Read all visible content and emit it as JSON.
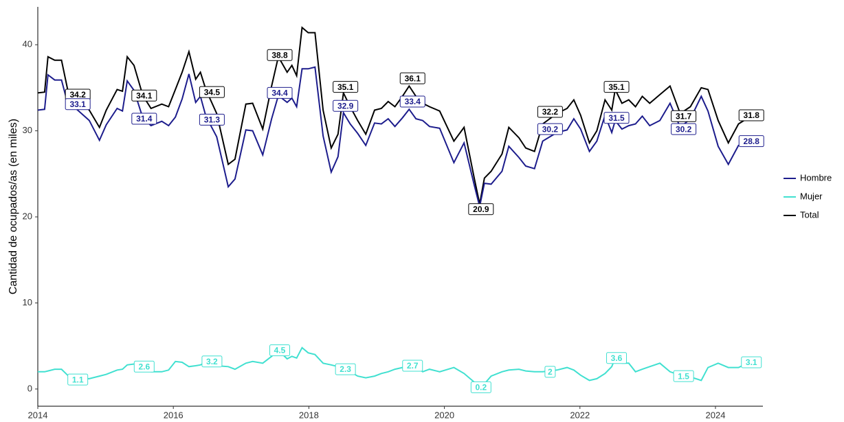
{
  "chart_data": {
    "type": "line",
    "ylabel": "Cantidad de ocupados/as (en miles)",
    "x": [
      2014.0,
      2014.1,
      2014.15,
      2014.25,
      2014.35,
      2014.44,
      2014.56,
      2014.76,
      2014.91,
      2015.01,
      2015.17,
      2015.25,
      2015.32,
      2015.42,
      2015.55,
      2015.67,
      2015.83,
      2015.93,
      2016.03,
      2016.13,
      2016.23,
      2016.33,
      2016.4,
      2016.48,
      2016.64,
      2016.81,
      2016.91,
      2017.07,
      2017.17,
      2017.32,
      2017.45,
      2017.55,
      2017.68,
      2017.75,
      2017.82,
      2017.9,
      2017.99,
      2018.09,
      2018.21,
      2018.33,
      2018.43,
      2018.51,
      2018.61,
      2018.72,
      2018.84,
      2018.97,
      2019.07,
      2019.17,
      2019.27,
      2019.38,
      2019.48,
      2019.58,
      2019.68,
      2019.78,
      2019.93,
      2020.14,
      2020.29,
      2020.44,
      2020.52,
      2020.59,
      2020.69,
      2020.85,
      2020.95,
      2021.1,
      2021.2,
      2021.33,
      2021.45,
      2021.66,
      2021.81,
      2021.91,
      2022.01,
      2022.14,
      2022.25,
      2022.37,
      2022.47,
      2022.52,
      2022.62,
      2022.72,
      2022.82,
      2022.92,
      2023.03,
      2023.18,
      2023.33,
      2023.48,
      2023.63,
      2023.79,
      2023.89,
      2024.04,
      2024.19,
      2024.34,
      2024.5
    ],
    "series": [
      {
        "name": "Hombre",
        "color": "#1c1c8c",
        "values": [
          32.4,
          32.5,
          36.5,
          35.9,
          35.9,
          33.2,
          32.6,
          31.2,
          28.9,
          30.7,
          32.6,
          32.3,
          35.8,
          34.7,
          31.5,
          30.6,
          31.1,
          30.6,
          31.6,
          33.7,
          36.6,
          33.3,
          34.0,
          31.7,
          29.3,
          23.5,
          24.4,
          30.1,
          30.0,
          27.2,
          31.4,
          34.1,
          33.3,
          33.8,
          32.8,
          37.2,
          37.2,
          37.4,
          29.4,
          25.2,
          27.0,
          32.1,
          30.8,
          29.7,
          28.3,
          30.9,
          30.8,
          31.4,
          30.5,
          31.5,
          32.5,
          31.4,
          31.2,
          30.5,
          30.3,
          26.3,
          28.6,
          23.7,
          21.2,
          23.9,
          23.8,
          25.3,
          28.2,
          26.9,
          25.9,
          25.6,
          28.8,
          29.8,
          30.1,
          31.4,
          30.2,
          27.6,
          28.8,
          31.8,
          29.8,
          31.2,
          30.2,
          30.6,
          30.8,
          31.7,
          30.6,
          31.2,
          33.2,
          30.4,
          31.4,
          34.0,
          32.3,
          28.2,
          26.1,
          28.3,
          28.5
        ],
        "labels": {
          "x": [
            2014.59,
            2015.57,
            2016.57,
            2017.57,
            2018.54,
            2019.53,
            2021.56,
            2022.54,
            2023.53,
            2024.53
          ],
          "values": [
            33.1,
            31.4,
            31.3,
            34.4,
            32.9,
            33.4,
            30.2,
            31.5,
            30.2,
            28.8
          ]
        }
      },
      {
        "name": "Mujer",
        "color": "#40e0d0",
        "values": [
          2.0,
          2.0,
          2.1,
          2.3,
          2.3,
          1.6,
          1.2,
          1.2,
          1.5,
          1.7,
          2.2,
          2.3,
          2.8,
          2.9,
          2.6,
          2.0,
          2.0,
          2.2,
          3.2,
          3.1,
          2.6,
          2.7,
          2.8,
          3.1,
          2.7,
          2.6,
          2.3,
          3.0,
          3.2,
          3.0,
          3.8,
          4.5,
          3.5,
          3.8,
          3.6,
          4.8,
          4.2,
          4.0,
          3.0,
          2.8,
          2.6,
          2.3,
          2.0,
          1.5,
          1.3,
          1.5,
          1.8,
          2.0,
          2.3,
          2.5,
          2.7,
          2.6,
          2.0,
          2.3,
          2.0,
          2.5,
          1.8,
          0.8,
          0.3,
          0.6,
          1.5,
          2.0,
          2.2,
          2.3,
          2.1,
          2.0,
          2.0,
          2.2,
          2.5,
          2.2,
          1.6,
          1.0,
          1.2,
          1.8,
          2.6,
          3.6,
          3.0,
          3.0,
          2.0,
          2.3,
          2.6,
          3.0,
          2.0,
          1.6,
          1.4,
          1.0,
          2.5,
          3.0,
          2.5,
          2.5,
          3.1
        ],
        "labels": {
          "x": [
            2014.59,
            2015.57,
            2016.57,
            2017.57,
            2018.54,
            2019.53,
            2020.54,
            2021.56,
            2022.54,
            2023.53,
            2024.53
          ],
          "values": [
            1.1,
            2.6,
            3.2,
            4.5,
            2.3,
            2.7,
            0.2,
            2,
            3.6,
            1.5,
            3.1
          ]
        }
      },
      {
        "name": "Total",
        "color": "#000000",
        "values": [
          34.4,
          34.5,
          38.6,
          38.2,
          38.2,
          34.8,
          33.8,
          32.4,
          30.4,
          32.4,
          34.8,
          34.6,
          38.6,
          37.6,
          34.1,
          32.6,
          33.1,
          32.8,
          34.8,
          36.8,
          39.2,
          36.0,
          36.8,
          34.8,
          32.0,
          26.1,
          26.7,
          33.1,
          33.2,
          30.2,
          35.2,
          38.6,
          36.8,
          37.6,
          36.4,
          42.0,
          41.4,
          41.4,
          32.4,
          28.0,
          29.6,
          34.4,
          32.8,
          31.2,
          29.6,
          32.4,
          32.6,
          33.4,
          32.8,
          34.0,
          35.2,
          34.0,
          33.2,
          32.8,
          32.3,
          28.8,
          30.4,
          24.5,
          21.5,
          24.5,
          25.3,
          27.3,
          30.4,
          29.2,
          28.0,
          27.6,
          30.8,
          32.0,
          32.6,
          33.6,
          31.8,
          28.6,
          30.0,
          33.6,
          32.4,
          34.8,
          33.2,
          33.6,
          32.8,
          34.0,
          33.2,
          34.2,
          35.2,
          32.0,
          32.8,
          35.0,
          34.8,
          31.2,
          28.6,
          30.8,
          31.6
        ],
        "labels": {
          "x": [
            2014.59,
            2015.57,
            2016.57,
            2017.57,
            2018.54,
            2019.53,
            2020.54,
            2021.56,
            2022.54,
            2023.53,
            2024.53
          ],
          "values": [
            34.2,
            34.1,
            34.5,
            38.8,
            35.1,
            36.1,
            20.9,
            32.2,
            35.1,
            31.7,
            31.8
          ]
        }
      }
    ],
    "xlim": [
      2014,
      2024.7
    ],
    "xticks": [
      2014,
      2016,
      2018,
      2020,
      2022,
      2024
    ],
    "ylim": [
      -2,
      44.4
    ],
    "yticks": [
      0,
      10,
      20,
      30,
      40
    ],
    "grid": false,
    "legend": "right"
  }
}
